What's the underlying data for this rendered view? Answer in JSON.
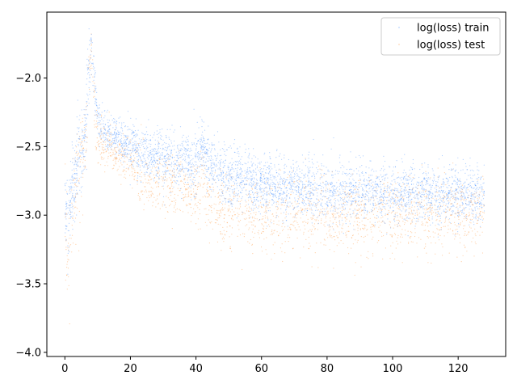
{
  "chart_data": {
    "type": "scatter",
    "title": "",
    "xlabel": "",
    "ylabel": "",
    "xlim": [
      -5.5,
      134.5
    ],
    "ylim": [
      -4.03,
      -1.52
    ],
    "xticks": [
      0,
      20,
      40,
      60,
      80,
      100,
      120
    ],
    "yticks": [
      -4.0,
      -3.5,
      -3.0,
      -2.5,
      -2.0
    ],
    "xtick_labels": [
      "0",
      "20",
      "40",
      "60",
      "80",
      "100",
      "120"
    ],
    "ytick_labels": [
      "−4.0",
      "−3.5",
      "−3.0",
      "−2.5",
      "−2.0"
    ],
    "grid": false,
    "legend_position": "top-right",
    "series": [
      {
        "name": "log(loss) train",
        "color": "#1f77ff",
        "summary_x": [
          0,
          1,
          2,
          4,
          6,
          7,
          8,
          9,
          10,
          12,
          15,
          20,
          25,
          30,
          35,
          40,
          42,
          45,
          50,
          60,
          70,
          80,
          90,
          100,
          110,
          120,
          128
        ],
        "summary_y_center": [
          -2.9,
          -3.05,
          -2.85,
          -2.6,
          -2.45,
          -2.1,
          -1.75,
          -2.05,
          -2.3,
          -2.38,
          -2.42,
          -2.5,
          -2.55,
          -2.58,
          -2.6,
          -2.62,
          -2.5,
          -2.68,
          -2.72,
          -2.78,
          -2.8,
          -2.82,
          -2.83,
          -2.84,
          -2.84,
          -2.85,
          -2.85
        ],
        "summary_y_spread": [
          0.3,
          0.25,
          0.25,
          0.25,
          0.25,
          0.3,
          0.15,
          0.2,
          0.12,
          0.12,
          0.12,
          0.15,
          0.15,
          0.17,
          0.17,
          0.2,
          0.15,
          0.18,
          0.18,
          0.18,
          0.17,
          0.17,
          0.17,
          0.17,
          0.17,
          0.17,
          0.17
        ]
      },
      {
        "name": "log(loss) test",
        "color": "#ff7f0e",
        "summary_x": [
          0,
          1,
          2,
          4,
          6,
          7,
          8,
          9,
          10,
          12,
          15,
          20,
          25,
          30,
          35,
          40,
          42,
          45,
          50,
          60,
          70,
          80,
          90,
          100,
          110,
          120,
          128
        ],
        "summary_y_center": [
          -3.1,
          -3.3,
          -3.0,
          -2.7,
          -2.5,
          -2.2,
          -1.8,
          -2.2,
          -2.45,
          -2.5,
          -2.55,
          -2.62,
          -2.75,
          -2.8,
          -2.8,
          -2.9,
          -2.75,
          -2.95,
          -3.0,
          -3.0,
          -3.0,
          -3.0,
          -3.0,
          -3.0,
          -3.0,
          -3.0,
          -3.0
        ],
        "summary_y_spread": [
          0.3,
          0.3,
          0.3,
          0.3,
          0.25,
          0.3,
          0.15,
          0.2,
          0.15,
          0.15,
          0.15,
          0.18,
          0.2,
          0.2,
          0.2,
          0.22,
          0.2,
          0.22,
          0.22,
          0.22,
          0.22,
          0.22,
          0.22,
          0.22,
          0.22,
          0.22,
          0.22
        ]
      }
    ]
  }
}
